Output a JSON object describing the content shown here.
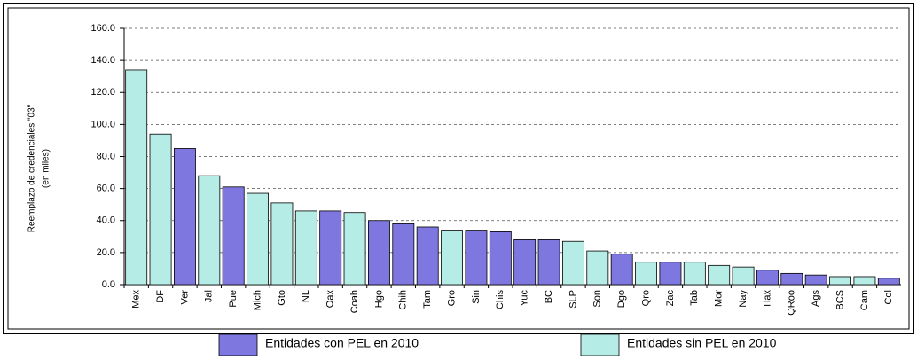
{
  "chart_data": {
    "type": "bar",
    "y_label": [
      "Reemplazo de credenciales \"03\"",
      "(en miles)"
    ],
    "categories": [
      "Mex",
      "DF",
      "Ver",
      "Jal",
      "Pue",
      "Mich",
      "Gto",
      "NL",
      "Oax",
      "Coah",
      "Hgo",
      "Chih",
      "Tam",
      "Gro",
      "Sin",
      "Chis",
      "Yuc",
      "BC",
      "SLP",
      "Son",
      "Dgo",
      "Qro",
      "Zac",
      "Tab",
      "Mor",
      "Nay",
      "Tlax",
      "QRoo",
      "Ags",
      "BCS",
      "Cam",
      "Col"
    ],
    "series": [
      {
        "name": "Entidades con PEL en 2010",
        "color": "#7f77e0",
        "values": [
          null,
          null,
          85,
          null,
          61,
          null,
          null,
          null,
          46,
          null,
          40,
          38,
          36,
          null,
          34,
          33,
          28,
          28,
          null,
          null,
          19,
          null,
          14,
          null,
          null,
          null,
          9,
          7,
          6,
          null,
          null,
          4
        ]
      },
      {
        "name": "Entidades sin PEL en 2010",
        "color": "#b6ece6",
        "values": [
          134,
          94,
          null,
          68,
          null,
          57,
          51,
          46,
          null,
          45,
          null,
          null,
          null,
          34,
          null,
          null,
          null,
          null,
          27,
          21,
          null,
          14,
          null,
          14,
          12,
          11,
          null,
          null,
          null,
          5,
          5,
          null
        ]
      }
    ],
    "ylim": [
      0,
      160
    ],
    "yticks": [
      {
        "value": 0,
        "label": "0.0"
      },
      {
        "value": 20,
        "label": "20.0"
      },
      {
        "value": 40,
        "label": "40.0"
      },
      {
        "value": 60,
        "label": "60.0"
      },
      {
        "value": 80,
        "label": "80.0"
      },
      {
        "value": 100,
        "label": "100.0"
      },
      {
        "value": 120,
        "label": "120.0"
      },
      {
        "value": 140,
        "label": "140.0"
      },
      {
        "value": 160,
        "label": "160.0"
      }
    ],
    "grid": true
  }
}
